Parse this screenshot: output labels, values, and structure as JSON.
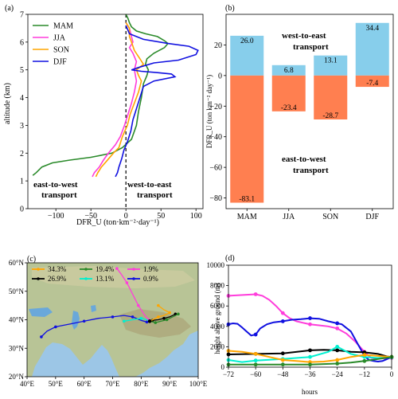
{
  "chart_data": [
    {
      "panel": "(a)",
      "type": "line",
      "xlabel": "DFR_U (ton·km⁻²·day⁻¹)",
      "ylabel": "altitude (km)",
      "xlim": [
        -140,
        110
      ],
      "ylim": [
        0,
        7
      ],
      "xticks": [
        "−100",
        "−50",
        "0",
        "50",
        "100"
      ],
      "yticks": [
        "0",
        "1",
        "2",
        "3",
        "4",
        "5",
        "6",
        "7"
      ],
      "legend_position": "top-left",
      "annotations": {
        "left": [
          "east-to-west",
          "transport"
        ],
        "right": [
          "west-to-east",
          "transport"
        ]
      },
      "annotation_colors": {
        "left": "#f46f44",
        "right": "#87ceeb"
      },
      "series": [
        {
          "name": "MAM",
          "color": "#2a8a2a",
          "points": [
            [
              0,
              7.0
            ],
            [
              3,
              6.85
            ],
            [
              5,
              6.7
            ],
            [
              8,
              6.55
            ],
            [
              15,
              6.4
            ],
            [
              28,
              6.3
            ],
            [
              45,
              6.2
            ],
            [
              55,
              6.05
            ],
            [
              60,
              5.95
            ],
            [
              55,
              5.8
            ],
            [
              40,
              5.6
            ],
            [
              30,
              5.4
            ],
            [
              28,
              5.2
            ],
            [
              32,
              5.0
            ],
            [
              30,
              4.8
            ],
            [
              25,
              4.5
            ],
            [
              22,
              4.0
            ],
            [
              18,
              3.5
            ],
            [
              15,
              3.0
            ],
            [
              8,
              2.5
            ],
            [
              -5,
              2.2
            ],
            [
              -20,
              2.0
            ],
            [
              -50,
              1.85
            ],
            [
              -80,
              1.75
            ],
            [
              -105,
              1.65
            ],
            [
              -120,
              1.5
            ],
            [
              -128,
              1.3
            ],
            [
              -133,
              1.2
            ]
          ]
        },
        {
          "name": "JJA",
          "color": "#ff3ddb",
          "points": [
            [
              0,
              6.7
            ],
            [
              5,
              6.5
            ],
            [
              8,
              6.2
            ],
            [
              10,
              6.0
            ],
            [
              5,
              5.8
            ],
            [
              10,
              5.6
            ],
            [
              15,
              5.3
            ],
            [
              12,
              5.0
            ],
            [
              15,
              4.6
            ],
            [
              12,
              4.2
            ],
            [
              8,
              3.8
            ],
            [
              3,
              3.4
            ],
            [
              -2,
              3.0
            ],
            [
              -8,
              2.6
            ],
            [
              -15,
              2.3
            ],
            [
              -25,
              2.0
            ],
            [
              -32,
              1.75
            ],
            [
              -38,
              1.5
            ],
            [
              -45,
              1.3
            ],
            [
              -48,
              1.15
            ]
          ]
        },
        {
          "name": "SON",
          "color": "#ffa500",
          "points": [
            [
              0,
              6.7
            ],
            [
              5,
              6.5
            ],
            [
              5,
              6.2
            ],
            [
              8,
              6.0
            ],
            [
              12,
              5.7
            ],
            [
              20,
              5.4
            ],
            [
              25,
              5.2
            ],
            [
              15,
              5.0
            ],
            [
              18,
              4.8
            ],
            [
              22,
              4.6
            ],
            [
              18,
              4.2
            ],
            [
              12,
              3.8
            ],
            [
              6,
              3.4
            ],
            [
              2,
              3.0
            ],
            [
              -5,
              2.6
            ],
            [
              -10,
              2.2
            ],
            [
              -18,
              2.0
            ],
            [
              -28,
              1.7
            ],
            [
              -35,
              1.5
            ],
            [
              -40,
              1.3
            ],
            [
              -43,
              1.15
            ]
          ]
        },
        {
          "name": "DJF",
          "color": "#1010e0",
          "points": [
            [
              0,
              6.6
            ],
            [
              5,
              6.3
            ],
            [
              25,
              6.1
            ],
            [
              60,
              5.95
            ],
            [
              90,
              5.85
            ],
            [
              103,
              5.7
            ],
            [
              100,
              5.55
            ],
            [
              75,
              5.35
            ],
            [
              40,
              5.25
            ],
            [
              20,
              5.1
            ],
            [
              8,
              5.0
            ],
            [
              22,
              4.95
            ],
            [
              45,
              4.9
            ],
            [
              65,
              4.85
            ],
            [
              70,
              4.75
            ],
            [
              40,
              4.6
            ],
            [
              25,
              4.4
            ],
            [
              20,
              4.0
            ],
            [
              15,
              3.6
            ],
            [
              10,
              3.2
            ],
            [
              7,
              2.8
            ],
            [
              2,
              2.4
            ],
            [
              -3,
              2.1
            ],
            [
              -6,
              1.8
            ],
            [
              -10,
              1.5
            ],
            [
              -12,
              1.3
            ],
            [
              -15,
              1.15
            ]
          ]
        }
      ]
    },
    {
      "panel": "(b)",
      "type": "bar",
      "ylabel": "DFR_U (ton km⁻² day⁻¹)",
      "ylim": [
        -87,
        40
      ],
      "yticks": [
        "20",
        "0",
        "−20",
        "−40",
        "−60",
        "−80"
      ],
      "categories": [
        "MAM",
        "JJA",
        "SON",
        "DJF"
      ],
      "series": [
        {
          "color": "#87ceeb",
          "values": [
            26.0,
            6.8,
            13.1,
            34.4
          ],
          "labels": [
            "26.0",
            "6.8",
            "13.1",
            "34.4"
          ]
        },
        {
          "color": "#ff7f50",
          "values": [
            -83.1,
            -23.4,
            -28.7,
            -7.4
          ],
          "labels": [
            "-83.1",
            "-23.4",
            "-28.7",
            "-7.4"
          ]
        }
      ],
      "annotations": {
        "top": [
          "west-to-east",
          "transport"
        ],
        "bottom": [
          "east-to-west",
          "transport"
        ]
      }
    },
    {
      "panel": "(c)",
      "type": "map",
      "xticks": [
        "40°E",
        "50°E",
        "60°E",
        "70°E",
        "80°E",
        "90°E",
        "100°E"
      ],
      "yticks": [
        "60°N",
        "50°N",
        "40°N",
        "30°N",
        "20°N"
      ],
      "legend": [
        {
          "label": "34.3%",
          "color": "#ffa500"
        },
        {
          "label": "19.4%",
          "color": "#2a8a2a"
        },
        {
          "label": "1.9%",
          "color": "#ff3ddb"
        },
        {
          "label": "26.9%",
          "color": "#000000"
        },
        {
          "label": "13.1%",
          "color": "#00f0d0"
        },
        {
          "label": "0.9%",
          "color": "#1010e0"
        }
      ]
    },
    {
      "panel": "(d)",
      "type": "line",
      "xlabel": "hours",
      "ylabel": "height above ground (m)",
      "xlim": [
        -72,
        0
      ],
      "ylim": [
        0,
        10000
      ],
      "xticks": [
        "−72",
        "−60",
        "−48",
        "−36",
        "−24",
        "−12",
        "0"
      ],
      "yticks": [
        "0",
        "2000",
        "4000",
        "6000",
        "8000",
        "10000"
      ],
      "series": [
        {
          "color": "#ff3ddb",
          "x": [
            -72,
            -68,
            -64,
            -60,
            -57,
            -54,
            -51,
            -48,
            -45,
            -42,
            -38,
            -36,
            -32,
            -28,
            -24,
            -20,
            -16,
            -12,
            -9,
            -6,
            -3,
            0
          ],
          "y": [
            7000,
            7050,
            7100,
            7150,
            7000,
            6600,
            6000,
            5300,
            4800,
            4500,
            4300,
            4200,
            4100,
            4000,
            3800,
            3300,
            2500,
            1500,
            900,
            900,
            850,
            900
          ]
        },
        {
          "color": "#1010e0",
          "x": [
            -72,
            -70,
            -68,
            -66,
            -64,
            -62,
            -60,
            -58,
            -55,
            -52,
            -48,
            -44,
            -40,
            -36,
            -32,
            -28,
            -24,
            -22,
            -18,
            -15,
            -12,
            -10,
            -8,
            -6,
            -4,
            -2,
            0
          ],
          "y": [
            4200,
            4300,
            4250,
            3900,
            3500,
            3100,
            3200,
            3800,
            4200,
            4400,
            4500,
            4650,
            4700,
            4800,
            4750,
            4500,
            4300,
            4200,
            3500,
            2300,
            1100,
            700,
            600,
            550,
            600,
            800,
            1000
          ]
        },
        {
          "color": "#000000",
          "x": [
            -72,
            -60,
            -48,
            -36,
            -30,
            -24,
            -18,
            -12,
            -6,
            -2,
            0
          ],
          "y": [
            1250,
            1300,
            1350,
            1650,
            1700,
            1650,
            1500,
            1450,
            1300,
            1050,
            1000
          ]
        },
        {
          "color": "#00f0d0",
          "x": [
            -72,
            -66,
            -60,
            -48,
            -36,
            -28,
            -24,
            -18,
            -12,
            -6,
            0
          ],
          "y": [
            700,
            500,
            650,
            800,
            1000,
            1500,
            2000,
            1300,
            1000,
            900,
            950
          ]
        },
        {
          "color": "#ffa500",
          "x": [
            -72,
            -66,
            -60,
            -54,
            -48,
            -42,
            -36,
            -30,
            -24,
            -18,
            -12,
            -6,
            0
          ],
          "y": [
            1600,
            1500,
            1300,
            1000,
            700,
            600,
            500,
            550,
            700,
            1000,
            1200,
            1100,
            1000
          ]
        },
        {
          "color": "#2a8a2a",
          "x": [
            -72,
            -60,
            -48,
            -36,
            -24,
            -18,
            -12,
            -6,
            0
          ],
          "y": [
            250,
            250,
            260,
            250,
            350,
            450,
            600,
            800,
            1000
          ]
        }
      ]
    }
  ]
}
